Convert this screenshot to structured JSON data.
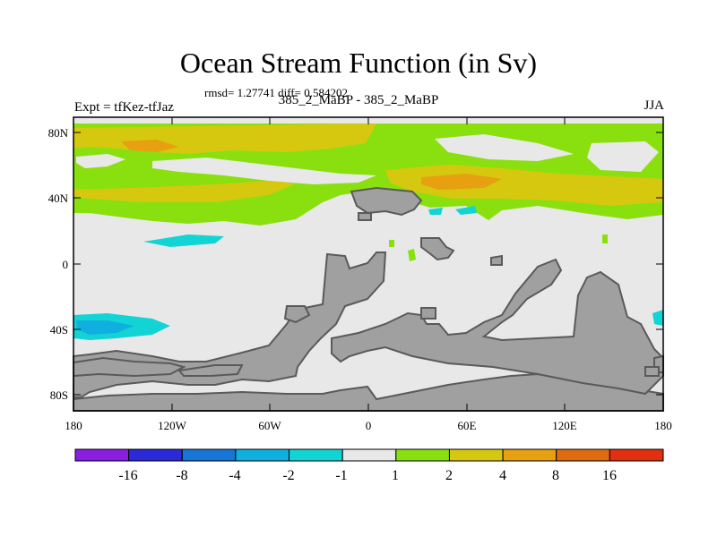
{
  "title": "Ocean Stream Function (in Sv)",
  "stats": "rmsd= 1.27741 diff= 0.584202",
  "subtitle_left": "Expt = tfKez-tfJaz",
  "subtitle_center": "385_2_MaBP - 385_2_MaBP",
  "subtitle_right": "JJA",
  "y_ticks": [
    "80N",
    "40N",
    "0",
    "40S",
    "80S"
  ],
  "x_ticks": [
    "180",
    "120W",
    "60W",
    "0",
    "60E",
    "120E",
    "180"
  ],
  "colorbar": {
    "labels": [
      "-16",
      "-8",
      "-4",
      "-2",
      "-1",
      "1",
      "2",
      "4",
      "8",
      "16"
    ],
    "colors": [
      "#8a1ee0",
      "#2a2ad8",
      "#1676d6",
      "#0fb0e0",
      "#13d4d4",
      "#e8e8e8",
      "#8ae00f",
      "#d6c80f",
      "#e6a010",
      "#e06a10",
      "#e0300f"
    ]
  },
  "map_colors": {
    "land": "#a0a0a0",
    "land_outline": "#5a5a5a",
    "ocean_near_zero": "#e8e8e8",
    "positive_low": "#8ae00f",
    "positive_mid": "#d6c80f",
    "positive_high": "#e6a010",
    "negative_low": "#13d4d4",
    "negative_mid": "#0fb0e0"
  }
}
